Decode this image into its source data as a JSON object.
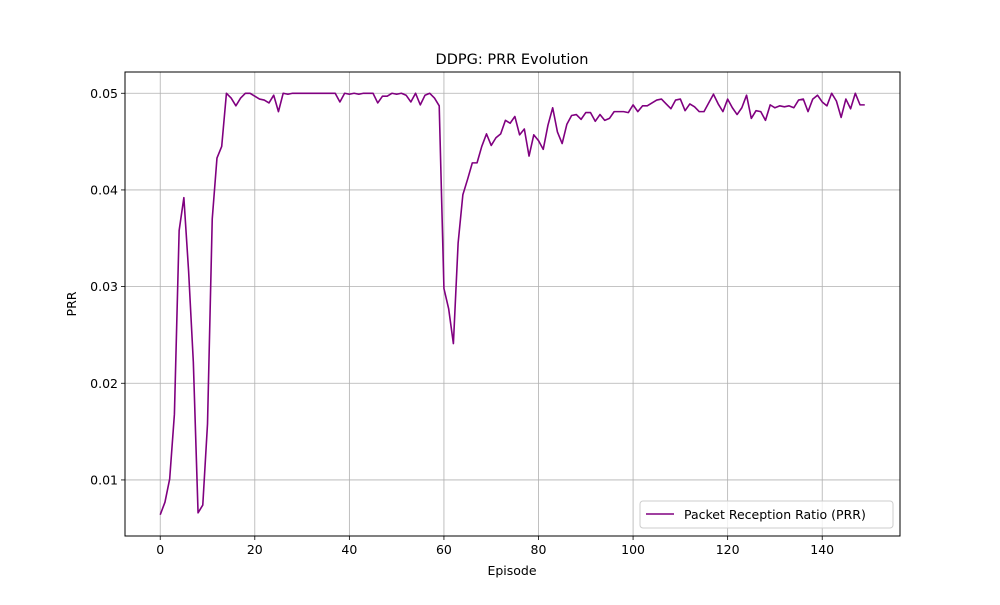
{
  "chart_data": {
    "type": "line",
    "title": "DDPG: PRR Evolution",
    "xlabel": "Episode",
    "ylabel": "PRR",
    "xlim": [
      -7.45,
      156.45
    ],
    "ylim": [
      0.0042,
      0.0522
    ],
    "xticks": [
      0,
      20,
      40,
      60,
      80,
      100,
      120,
      140
    ],
    "yticks": [
      0.01,
      0.02,
      0.03,
      0.04,
      0.05
    ],
    "xtick_labels": [
      "0",
      "20",
      "40",
      "60",
      "80",
      "100",
      "120",
      "140"
    ],
    "ytick_labels": [
      "0.01",
      "0.02",
      "0.03",
      "0.04",
      "0.05"
    ],
    "grid": true,
    "legend_position": "lower right",
    "series": [
      {
        "name": "Packet Reception Ratio (PRR)",
        "color": "#800080",
        "x": [
          0,
          1,
          2,
          3,
          4,
          5,
          6,
          7,
          8,
          9,
          10,
          11,
          12,
          13,
          14,
          15,
          16,
          17,
          18,
          19,
          20,
          21,
          22,
          23,
          24,
          25,
          26,
          27,
          28,
          29,
          30,
          31,
          32,
          33,
          34,
          35,
          36,
          37,
          38,
          39,
          40,
          41,
          42,
          43,
          44,
          45,
          46,
          47,
          48,
          49,
          50,
          51,
          52,
          53,
          54,
          55,
          56,
          57,
          58,
          59,
          60,
          61,
          62,
          63,
          64,
          65,
          66,
          67,
          68,
          69,
          70,
          71,
          72,
          73,
          74,
          75,
          76,
          77,
          78,
          79,
          80,
          81,
          82,
          83,
          84,
          85,
          86,
          87,
          88,
          89,
          90,
          91,
          92,
          93,
          94,
          95,
          96,
          97,
          98,
          99,
          100,
          101,
          102,
          103,
          104,
          105,
          106,
          107,
          108,
          109,
          110,
          111,
          112,
          113,
          114,
          115,
          116,
          117,
          118,
          119,
          120,
          121,
          122,
          123,
          124,
          125,
          126,
          127,
          128,
          129,
          130,
          131,
          132,
          133,
          134,
          135,
          136,
          137,
          138,
          139,
          140,
          141,
          142,
          143,
          144,
          145,
          146,
          147,
          148,
          149
        ],
        "values": [
          0.0064,
          0.0077,
          0.0101,
          0.0168,
          0.0358,
          0.0392,
          0.0316,
          0.0222,
          0.0066,
          0.0074,
          0.0158,
          0.037,
          0.0433,
          0.0445,
          0.05,
          0.0495,
          0.0487,
          0.0495,
          0.05,
          0.05,
          0.0497,
          0.0494,
          0.0493,
          0.049,
          0.0498,
          0.0481,
          0.05,
          0.0499,
          0.05,
          0.05,
          0.05,
          0.05,
          0.05,
          0.05,
          0.05,
          0.05,
          0.05,
          0.05,
          0.0491,
          0.05,
          0.0499,
          0.05,
          0.0499,
          0.05,
          0.05,
          0.05,
          0.049,
          0.0497,
          0.0497,
          0.05,
          0.0499,
          0.05,
          0.0498,
          0.0491,
          0.05,
          0.0488,
          0.0498,
          0.05,
          0.0495,
          0.0487,
          0.0298,
          0.0277,
          0.0241,
          0.0345,
          0.0395,
          0.0411,
          0.0428,
          0.0428,
          0.0445,
          0.0458,
          0.0446,
          0.0454,
          0.0458,
          0.0472,
          0.0469,
          0.0476,
          0.0457,
          0.0463,
          0.0435,
          0.0457,
          0.0451,
          0.0442,
          0.0467,
          0.0485,
          0.046,
          0.0448,
          0.0468,
          0.0477,
          0.0478,
          0.0473,
          0.048,
          0.048,
          0.0471,
          0.0478,
          0.0472,
          0.0474,
          0.0481,
          0.0481,
          0.0481,
          0.048,
          0.0488,
          0.0481,
          0.0487,
          0.0487,
          0.049,
          0.0493,
          0.0494,
          0.0489,
          0.0484,
          0.0493,
          0.0494,
          0.0482,
          0.0489,
          0.0486,
          0.0481,
          0.0481,
          0.049,
          0.0499,
          0.0489,
          0.0481,
          0.0494,
          0.0485,
          0.0478,
          0.0485,
          0.0498,
          0.0474,
          0.0482,
          0.0481,
          0.0472,
          0.0488,
          0.0485,
          0.0487,
          0.0486,
          0.0487,
          0.0485,
          0.0493,
          0.0494,
          0.0481,
          0.0494,
          0.0498,
          0.0491,
          0.0487,
          0.05,
          0.0492,
          0.0475,
          0.0494,
          0.0484,
          0.05,
          0.0488,
          0.0488
        ]
      }
    ]
  }
}
